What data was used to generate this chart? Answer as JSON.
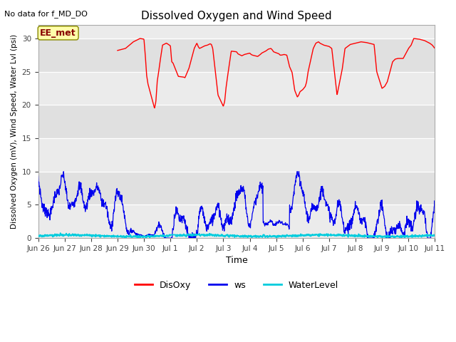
{
  "title": "Dissolved Oxygen and Wind Speed",
  "no_data_label": "No data for f_MD_DO",
  "station_label": "EE_met",
  "ylabel": "Dissolved Oxygen (mV), Wind Speed, Water Lvl (psi)",
  "xlabel": "Time",
  "ylim": [
    0,
    32
  ],
  "yticks": [
    0,
    5,
    10,
    15,
    20,
    25,
    30
  ],
  "plot_bg_color": "#e0e0e0",
  "band_light_color": "#ebebeb",
  "band_dark_color": "#d8d8d8",
  "legend_labels": [
    "DisOxy",
    "ws",
    "WaterLevel"
  ],
  "disoxy_color": "#ff0000",
  "ws_color": "#0000ee",
  "waterlevel_color": "#00ccdd",
  "x_tick_labels": [
    "Jun 26",
    "Jun 27",
    "Jun 28",
    "Jun 29",
    "Jun 30",
    "Jul 1",
    "Jul 2",
    "Jul 3",
    "Jul 4",
    "Jul 5",
    "Jul 6",
    "Jul 7",
    "Jul 8",
    "Jul 9",
    "Jul 10",
    "Jul 11"
  ],
  "title_fontsize": 11,
  "tick_fontsize": 7.5,
  "ylabel_fontsize": 7.5,
  "xlabel_fontsize": 9,
  "legend_fontsize": 9,
  "no_data_fontsize": 8,
  "station_fontsize": 9
}
